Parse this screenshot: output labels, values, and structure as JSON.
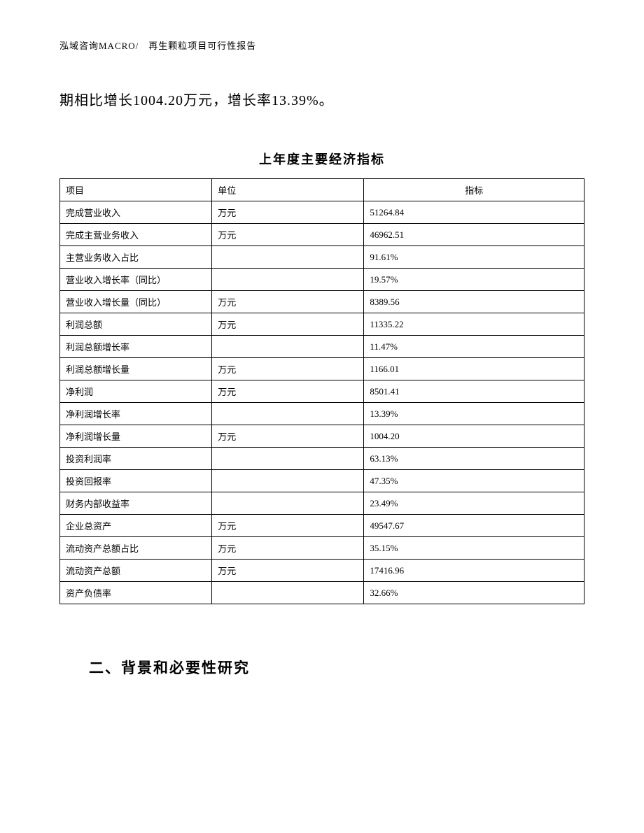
{
  "header": "泓域咨询MACRO/　再生颗粒项目可行性报告",
  "body_paragraph": "期相比增长1004.20万元，增长率13.39%。",
  "table": {
    "title": "上年度主要经济指标",
    "columns": {
      "item": "项目",
      "unit": "单位",
      "value": "指标"
    },
    "rows": [
      {
        "item": "完成营业收入",
        "unit": "万元",
        "value": "51264.84"
      },
      {
        "item": "完成主营业务收入",
        "unit": "万元",
        "value": "46962.51"
      },
      {
        "item": "主营业务收入占比",
        "unit": "",
        "value": "91.61%"
      },
      {
        "item": "营业收入增长率（同比）",
        "unit": "",
        "value": "19.57%"
      },
      {
        "item": "营业收入增长量（同比）",
        "unit": "万元",
        "value": "8389.56"
      },
      {
        "item": "利润总额",
        "unit": "万元",
        "value": "11335.22"
      },
      {
        "item": "利润总额增长率",
        "unit": "",
        "value": "11.47%"
      },
      {
        "item": "利润总额增长量",
        "unit": "万元",
        "value": "1166.01"
      },
      {
        "item": "净利润",
        "unit": "万元",
        "value": "8501.41"
      },
      {
        "item": "净利润增长率",
        "unit": "",
        "value": "13.39%"
      },
      {
        "item": "净利润增长量",
        "unit": "万元",
        "value": "1004.20"
      },
      {
        "item": "投资利润率",
        "unit": "",
        "value": "63.13%"
      },
      {
        "item": "投资回报率",
        "unit": "",
        "value": "47.35%"
      },
      {
        "item": "财务内部收益率",
        "unit": "",
        "value": "23.49%"
      },
      {
        "item": "企业总资产",
        "unit": "万元",
        "value": "49547.67"
      },
      {
        "item": "流动资产总额占比",
        "unit": "万元",
        "value": "35.15%"
      },
      {
        "item": "流动资产总额",
        "unit": "万元",
        "value": "17416.96"
      },
      {
        "item": "资产负债率",
        "unit": "",
        "value": "32.66%"
      }
    ]
  },
  "section_heading": "二、背景和必要性研究"
}
